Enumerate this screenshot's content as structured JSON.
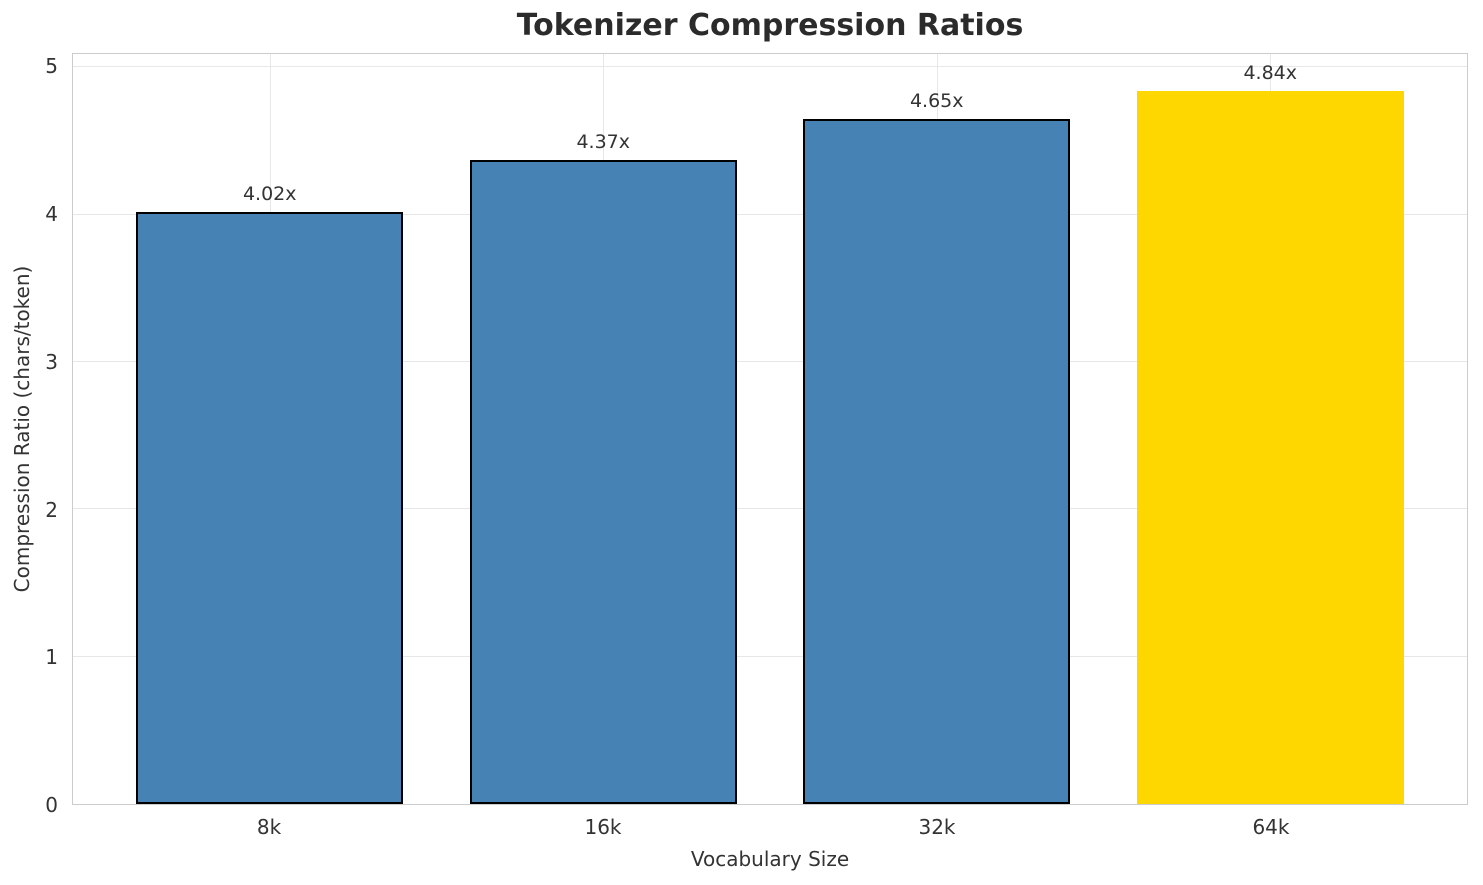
{
  "chart_data": {
    "type": "bar",
    "title": "Tokenizer Compression Ratios",
    "xlabel": "Vocabulary Size",
    "ylabel": "Compression Ratio (chars/token)",
    "categories": [
      "8k",
      "16k",
      "32k",
      "64k"
    ],
    "values": [
      4.02,
      4.37,
      4.65,
      4.84
    ],
    "bar_value_labels": [
      "4.02x",
      "4.37x",
      "4.65x",
      "4.84x"
    ],
    "bar_colors": [
      "#4682B4",
      "#4682B4",
      "#4682B4",
      "#FFD700"
    ],
    "bar_edge_colors": [
      "#000000",
      "#000000",
      "#000000",
      null
    ],
    "yticks": [
      0,
      1,
      2,
      3,
      4,
      5
    ],
    "ylim": [
      0,
      5.09
    ],
    "xlim": [
      -0.59,
      3.59
    ],
    "bar_width": 0.8,
    "grid": true,
    "legend": null,
    "colors": {
      "background": "#ffffff",
      "grid": "#e7e7e7",
      "spine": "#cccccc",
      "text": "#333333",
      "title": "#2b2b2b",
      "bar_edge": "#000000",
      "series_blue": "#4682B4",
      "highlight_gold": "#FFD700"
    }
  }
}
